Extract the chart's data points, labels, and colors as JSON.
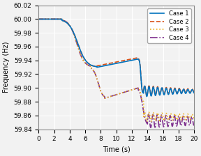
{
  "title": "",
  "xlabel": "Time (s)",
  "ylabel": "Frequency (Hz)",
  "xlim": [
    0,
    20
  ],
  "ylim": [
    59.84,
    60.02
  ],
  "yticks": [
    59.84,
    59.86,
    59.88,
    59.9,
    59.92,
    59.94,
    59.96,
    59.98,
    60.0,
    60.02
  ],
  "xticks": [
    0,
    2,
    4,
    6,
    8,
    10,
    12,
    14,
    16,
    18,
    20
  ],
  "legend": [
    "Case 1",
    "Case 2",
    "Case 3",
    "Case 4"
  ],
  "colors": [
    "#0072BD",
    "#D95319",
    "#EDB120",
    "#7E2F8E"
  ],
  "linestyles": [
    "-",
    "--",
    ":",
    "-."
  ],
  "linewidths": [
    1.2,
    1.2,
    1.2,
    1.2
  ],
  "bg_color": "#f2f2f2",
  "grid_color": "#ffffff",
  "fig_bg": "#f2f2f2"
}
